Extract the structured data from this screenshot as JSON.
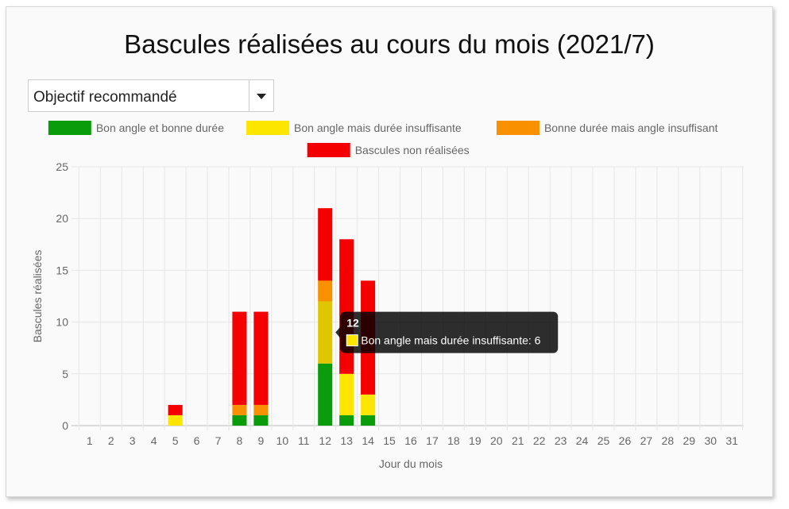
{
  "dropdown": {
    "value": "Objectif recommandé"
  },
  "colors": {
    "good": "#0a9c0a",
    "angle_ok": "#fce600",
    "angle_ok_hover": "#e0c600",
    "duration_ok": "#f99000",
    "not_done": "#f50000"
  },
  "chart_data": {
    "type": "bar",
    "stacked": true,
    "title": "Bascules réalisées au cours du mois (2021/7)",
    "xlabel": "Jour du mois",
    "ylabel": "Bascules réalisées",
    "ylim": [
      0,
      25
    ],
    "yticks": [
      0,
      5,
      10,
      15,
      20,
      25
    ],
    "categories": [
      "1",
      "2",
      "3",
      "4",
      "5",
      "6",
      "7",
      "8",
      "9",
      "10",
      "11",
      "12",
      "13",
      "14",
      "15",
      "16",
      "17",
      "18",
      "19",
      "20",
      "21",
      "22",
      "23",
      "24",
      "25",
      "26",
      "27",
      "28",
      "29",
      "30",
      "31"
    ],
    "series": [
      {
        "name": "Bon angle et bonne durée",
        "color": "#0a9c0a",
        "values": [
          0,
          0,
          0,
          0,
          0,
          0,
          0,
          1,
          1,
          0,
          0,
          6,
          1,
          1,
          0,
          0,
          0,
          0,
          0,
          0,
          0,
          0,
          0,
          0,
          0,
          0,
          0,
          0,
          0,
          0,
          0
        ]
      },
      {
        "name": "Bon angle mais durée insuffisante",
        "color": "#fce600",
        "values": [
          0,
          0,
          0,
          0,
          1,
          0,
          0,
          0,
          0,
          0,
          0,
          6,
          4,
          2,
          0,
          0,
          0,
          0,
          0,
          0,
          0,
          0,
          0,
          0,
          0,
          0,
          0,
          0,
          0,
          0,
          0
        ]
      },
      {
        "name": "Bonne durée mais angle insuffisant",
        "color": "#f99000",
        "values": [
          0,
          0,
          0,
          0,
          0,
          0,
          0,
          1,
          1,
          0,
          0,
          2,
          0,
          0,
          0,
          0,
          0,
          0,
          0,
          0,
          0,
          0,
          0,
          0,
          0,
          0,
          0,
          0,
          0,
          0,
          0
        ]
      },
      {
        "name": "Bascules non réalisées",
        "color": "#f50000",
        "values": [
          0,
          0,
          0,
          0,
          1,
          0,
          0,
          9,
          9,
          0,
          0,
          7,
          13,
          11,
          0,
          0,
          0,
          0,
          0,
          0,
          0,
          0,
          0,
          0,
          0,
          0,
          0,
          0,
          0,
          0,
          0
        ]
      }
    ],
    "tooltip": {
      "category": "12",
      "series_index": 1,
      "title": "12",
      "text": "Bon angle mais durée insuffisante: 6"
    }
  }
}
